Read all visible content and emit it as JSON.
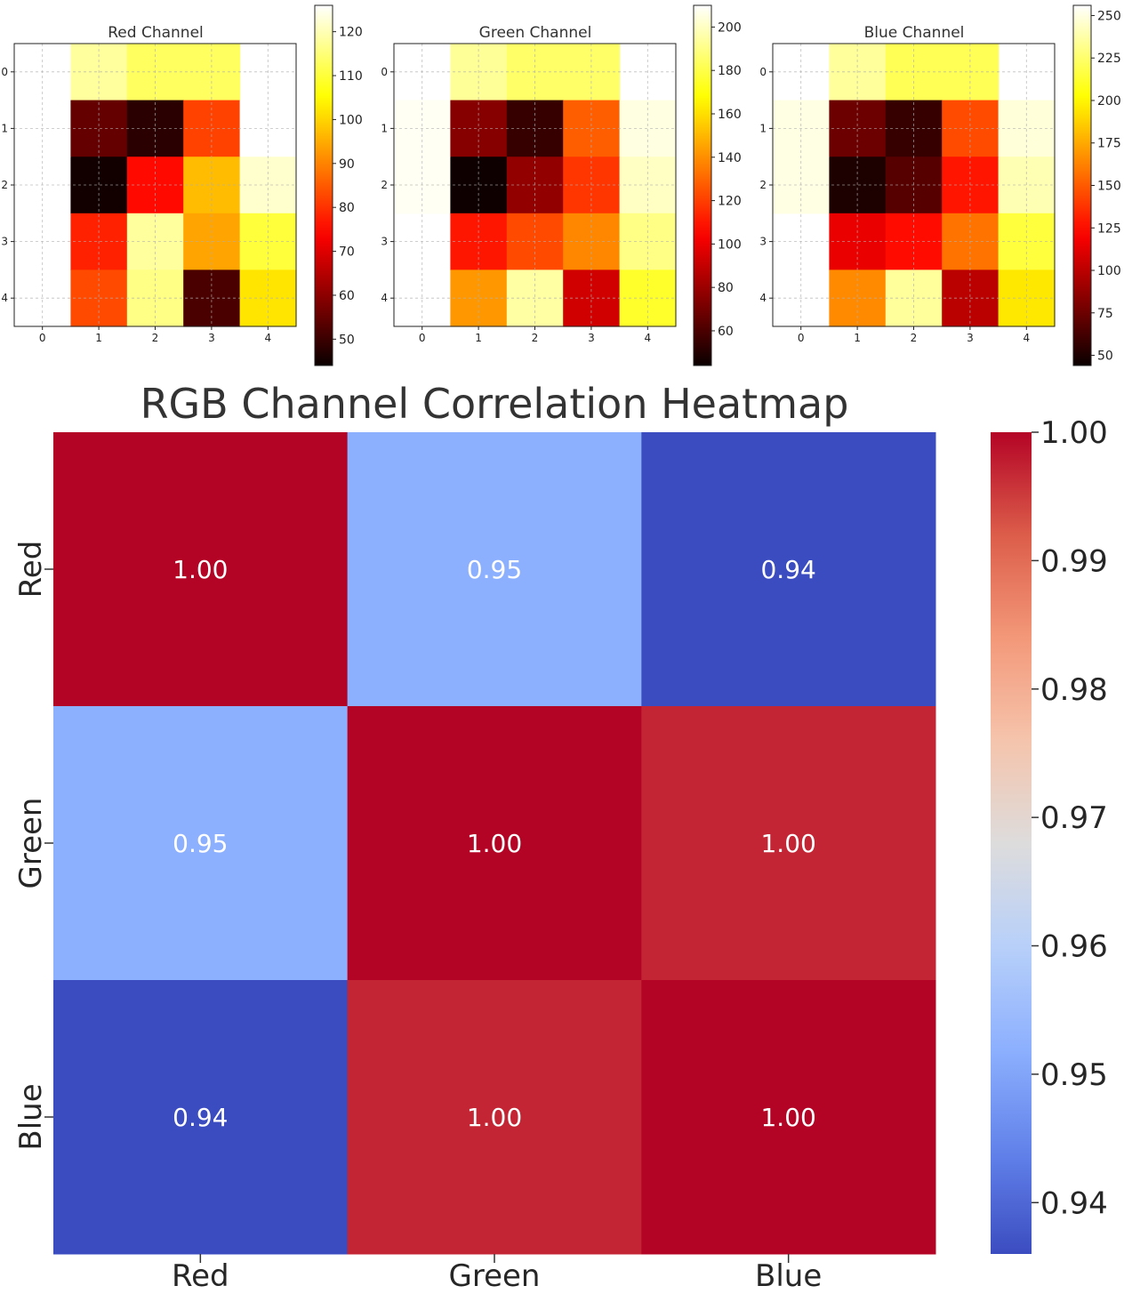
{
  "chart_data": [
    {
      "type": "heatmap",
      "title": "Red Channel",
      "x_ticks": [
        "0",
        "1",
        "2",
        "3",
        "4"
      ],
      "y_ticks": [
        "0",
        "1",
        "2",
        "3",
        "4"
      ],
      "values": [
        [
          null,
          118,
          113,
          113,
          null
        ],
        [
          126,
          55,
          48,
          82,
          126
        ],
        [
          126,
          45,
          75,
          97,
          122
        ],
        [
          null,
          78,
          118,
          94,
          110
        ],
        [
          null,
          83,
          116,
          52,
          102
        ]
      ],
      "colormap": "hot",
      "colorbar": {
        "range": [
          44,
          126
        ],
        "ticks": [
          50,
          60,
          70,
          80,
          90,
          100,
          110,
          120
        ]
      },
      "grid": true
    },
    {
      "type": "heatmap",
      "title": "Green Channel",
      "x_ticks": [
        "0",
        "1",
        "2",
        "3",
        "4"
      ],
      "y_ticks": [
        "0",
        "1",
        "2",
        "3",
        "4"
      ],
      "values": [
        [
          null,
          193,
          185,
          185,
          null
        ],
        [
          208,
          75,
          55,
          128,
          205
        ],
        [
          208,
          45,
          78,
          118,
          200
        ],
        [
          null,
          110,
          123,
          138,
          190
        ],
        [
          null,
          142,
          195,
          93,
          175
        ]
      ],
      "colormap": "hot",
      "colorbar": {
        "range": [
          44,
          210
        ],
        "ticks": [
          60,
          80,
          100,
          120,
          140,
          160,
          180,
          200
        ]
      },
      "grid": true
    },
    {
      "type": "heatmap",
      "title": "Blue Channel",
      "x_ticks": [
        "0",
        "1",
        "2",
        "3",
        "4"
      ],
      "y_ticks": [
        "0",
        "1",
        "2",
        "3",
        "4"
      ],
      "values": [
        [
          null,
          235,
          220,
          220,
          null
        ],
        [
          250,
          75,
          58,
          145,
          248
        ],
        [
          250,
          50,
          68,
          128,
          240
        ],
        [
          null,
          115,
          125,
          158,
          215
        ],
        [
          null,
          165,
          235,
          100,
          195
        ]
      ],
      "colormap": "hot",
      "colorbar": {
        "range": [
          44,
          256
        ],
        "ticks": [
          50,
          75,
          100,
          125,
          150,
          175,
          200,
          225,
          250
        ]
      },
      "grid": true
    },
    {
      "type": "heatmap",
      "title": "RGB Channel Correlation Heatmap",
      "x_labels": [
        "Red",
        "Green",
        "Blue"
      ],
      "y_labels": [
        "Red",
        "Green",
        "Blue"
      ],
      "values": [
        [
          1.0,
          0.952,
          0.936
        ],
        [
          0.952,
          1.0,
          0.997
        ],
        [
          0.936,
          0.997,
          1.0
        ]
      ],
      "annotations": [
        [
          "1.00",
          "0.95",
          "0.94"
        ],
        [
          "0.95",
          "1.00",
          "1.00"
        ],
        [
          "0.94",
          "1.00",
          "1.00"
        ]
      ],
      "colormap": "coolwarm",
      "colorbar": {
        "range": [
          0.936,
          1.0
        ],
        "ticks": [
          0.94,
          0.95,
          0.96,
          0.97,
          0.98,
          0.99,
          1.0
        ],
        "tick_labels": [
          "0.94",
          "0.95",
          "0.96",
          "0.97",
          "0.98",
          "0.99",
          "1.00"
        ]
      }
    }
  ]
}
